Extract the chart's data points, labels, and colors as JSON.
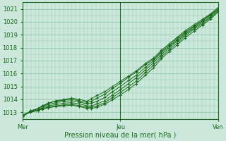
{
  "xlabel": "Pression niveau de la mer( hPa )",
  "bg_color": "#cce8dc",
  "grid_color": "#99ccb3",
  "line_color": "#1a6b1a",
  "ylim": [
    1012.5,
    1021.5
  ],
  "yticks": [
    1013,
    1014,
    1015,
    1016,
    1017,
    1018,
    1019,
    1020,
    1021
  ],
  "xtick_labels": [
    "Mer",
    "Jeu",
    "Ven"
  ],
  "xtick_positions": [
    0.0,
    0.5,
    1.0
  ],
  "lines": [
    {
      "x": [
        0.0,
        0.04,
        0.08,
        0.1,
        0.13,
        0.17,
        0.21,
        0.25,
        0.29,
        0.33,
        0.35,
        0.38,
        0.42,
        0.46,
        0.5,
        0.54,
        0.58,
        0.63,
        0.67,
        0.71,
        0.75,
        0.79,
        0.83,
        0.88,
        0.92,
        0.96,
        1.0
      ],
      "y": [
        1012.7,
        1013.1,
        1013.3,
        1013.5,
        1013.7,
        1013.9,
        1014.0,
        1014.1,
        1014.0,
        1013.85,
        1014.05,
        1014.3,
        1014.6,
        1015.0,
        1015.4,
        1015.8,
        1016.2,
        1016.8,
        1017.2,
        1017.8,
        1018.3,
        1018.8,
        1019.3,
        1019.8,
        1020.2,
        1020.6,
        1021.1
      ]
    },
    {
      "x": [
        0.0,
        0.04,
        0.08,
        0.1,
        0.13,
        0.17,
        0.21,
        0.25,
        0.29,
        0.33,
        0.35,
        0.38,
        0.42,
        0.46,
        0.5,
        0.54,
        0.58,
        0.63,
        0.67,
        0.71,
        0.75,
        0.79,
        0.83,
        0.88,
        0.92,
        0.96,
        1.0
      ],
      "y": [
        1012.7,
        1013.1,
        1013.3,
        1013.5,
        1013.7,
        1013.85,
        1013.95,
        1014.0,
        1013.9,
        1013.75,
        1013.85,
        1014.1,
        1014.4,
        1014.85,
        1015.25,
        1015.7,
        1016.1,
        1016.7,
        1017.1,
        1017.7,
        1018.2,
        1018.7,
        1019.2,
        1019.7,
        1020.1,
        1020.55,
        1021.0
      ]
    },
    {
      "x": [
        0.0,
        0.04,
        0.08,
        0.1,
        0.13,
        0.17,
        0.21,
        0.25,
        0.29,
        0.33,
        0.35,
        0.38,
        0.42,
        0.46,
        0.5,
        0.54,
        0.58,
        0.63,
        0.67,
        0.71,
        0.75,
        0.79,
        0.83,
        0.88,
        0.92,
        0.96,
        1.0
      ],
      "y": [
        1012.7,
        1013.1,
        1013.3,
        1013.45,
        1013.6,
        1013.75,
        1013.85,
        1013.9,
        1013.8,
        1013.65,
        1013.7,
        1013.85,
        1014.15,
        1014.6,
        1015.0,
        1015.45,
        1015.85,
        1016.5,
        1017.0,
        1017.6,
        1018.1,
        1018.6,
        1019.1,
        1019.65,
        1020.05,
        1020.5,
        1020.95
      ]
    },
    {
      "x": [
        0.0,
        0.04,
        0.08,
        0.1,
        0.13,
        0.17,
        0.21,
        0.25,
        0.29,
        0.33,
        0.35,
        0.38,
        0.42,
        0.46,
        0.5,
        0.54,
        0.58,
        0.63,
        0.67,
        0.71,
        0.75,
        0.79,
        0.83,
        0.88,
        0.92,
        0.96,
        1.0
      ],
      "y": [
        1012.7,
        1013.05,
        1013.2,
        1013.35,
        1013.5,
        1013.6,
        1013.7,
        1013.75,
        1013.65,
        1013.5,
        1013.5,
        1013.65,
        1013.9,
        1014.35,
        1014.75,
        1015.2,
        1015.65,
        1016.3,
        1016.85,
        1017.45,
        1018.0,
        1018.5,
        1019.0,
        1019.55,
        1019.95,
        1020.4,
        1020.9
      ]
    },
    {
      "x": [
        0.0,
        0.04,
        0.08,
        0.1,
        0.13,
        0.17,
        0.21,
        0.25,
        0.29,
        0.33,
        0.35,
        0.38,
        0.42,
        0.46,
        0.5,
        0.54,
        0.58,
        0.63,
        0.67,
        0.71,
        0.75,
        0.79,
        0.83,
        0.88,
        0.92,
        0.96,
        1.0
      ],
      "y": [
        1012.8,
        1013.05,
        1013.2,
        1013.3,
        1013.4,
        1013.5,
        1013.58,
        1013.62,
        1013.52,
        1013.4,
        1013.38,
        1013.5,
        1013.75,
        1014.15,
        1014.55,
        1014.95,
        1015.4,
        1016.1,
        1016.65,
        1017.3,
        1017.85,
        1018.35,
        1018.9,
        1019.45,
        1019.85,
        1020.3,
        1020.8
      ]
    },
    {
      "x": [
        0.0,
        0.04,
        0.08,
        0.1,
        0.13,
        0.17,
        0.21,
        0.25,
        0.29,
        0.33,
        0.35,
        0.38,
        0.42,
        0.46,
        0.5,
        0.54,
        0.58,
        0.63,
        0.67,
        0.71,
        0.75,
        0.79,
        0.83,
        0.88,
        0.92,
        0.96,
        1.0
      ],
      "y": [
        1012.8,
        1013.0,
        1013.15,
        1013.25,
        1013.35,
        1013.45,
        1013.5,
        1013.55,
        1013.45,
        1013.3,
        1013.28,
        1013.4,
        1013.62,
        1013.98,
        1014.35,
        1014.75,
        1015.2,
        1015.9,
        1016.45,
        1017.15,
        1017.7,
        1018.2,
        1018.75,
        1019.3,
        1019.75,
        1020.2,
        1020.75
      ]
    }
  ]
}
